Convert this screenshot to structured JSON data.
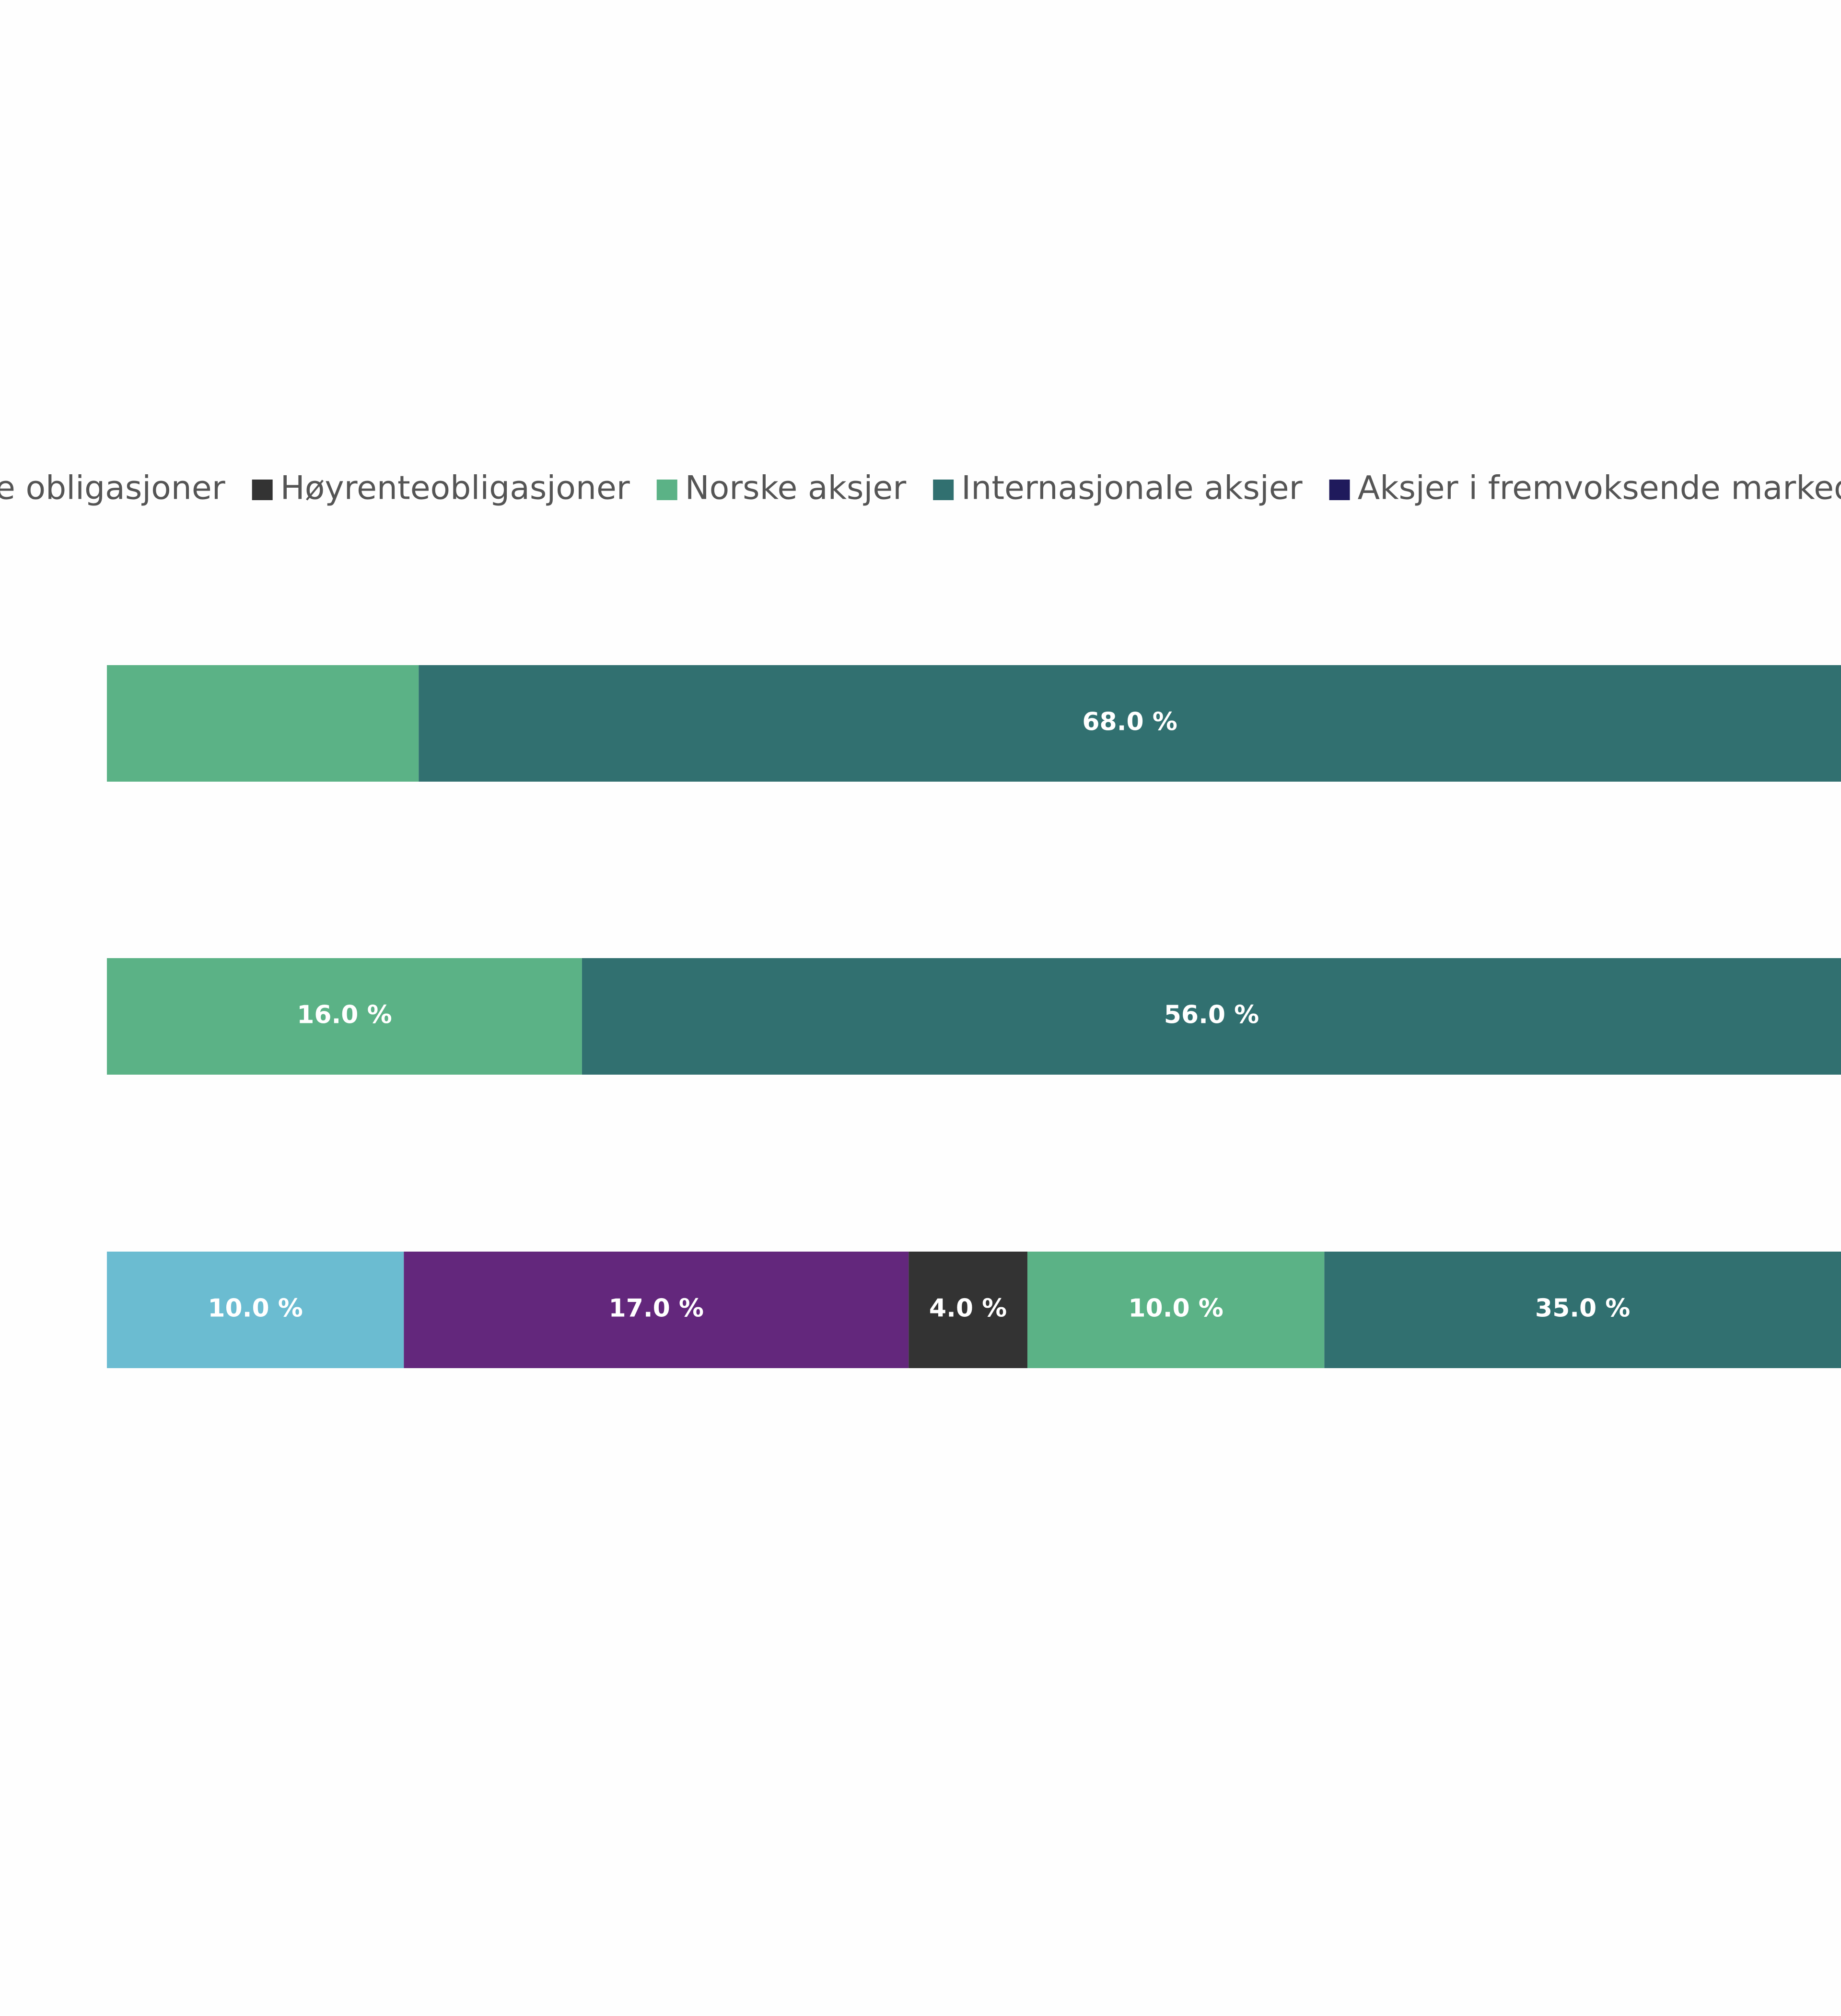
{
  "chart_data": {
    "type": "stacked-bar",
    "categories": [
      null,
      null,
      null
    ],
    "series": [
      {
        "name": null,
        "color": "#6bbcd1",
        "values": [
          null,
          null,
          10
        ],
        "value_labels": [
          null,
          null,
          "10.0 %"
        ]
      },
      {
        "name": "e obligasjoner",
        "color": "#63277c",
        "values": [
          null,
          null,
          17
        ],
        "value_labels": [
          null,
          null,
          "17.0 %"
        ]
      },
      {
        "name": "Høyrenteobligasjoner",
        "color": "#333333",
        "values": [
          null,
          null,
          4
        ],
        "value_labels": [
          null,
          null,
          "4.0 %"
        ]
      },
      {
        "name": "Norske aksjer",
        "color": "#5bb286",
        "values": [
          10.5,
          16,
          10
        ],
        "value_labels": [
          null,
          "16.0 %",
          "10.0 %"
        ]
      },
      {
        "name": "Internasjonale aksjer",
        "color": "#317070",
        "values": [
          68,
          56,
          35
        ],
        "value_labels": [
          "68.0 %",
          "56.0 %",
          "35.0 %"
        ]
      },
      {
        "name": "Aksjer i fremvoksende markeder",
        "color": "#1f1a5c",
        "values": [
          null,
          null,
          null
        ]
      }
    ],
    "xlim": [
      -3.6,
      58.4
    ]
  }
}
